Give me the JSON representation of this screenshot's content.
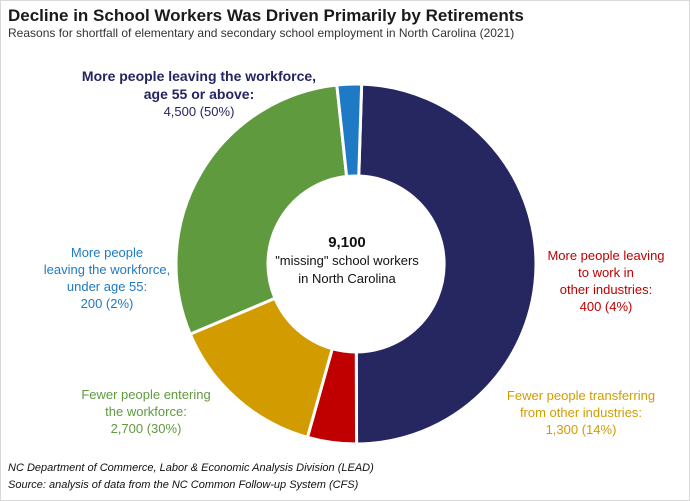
{
  "chart_data": {
    "type": "pie",
    "title": "Decline in School Workers Was Driven Primarily by Retirements",
    "subtitle": "Reasons for shortfall of elementary  and secondary school employment  in North Carolina (2021)",
    "center": {
      "value": "9,100",
      "line1": "\"missing\" school workers",
      "line2": "in North Carolina"
    },
    "slices": [
      {
        "label_lines": [
          "More people leaving the workforce,",
          "age 55 or above:"
        ],
        "value_label": "4,500 (50%)",
        "value": 4500,
        "percent": 50,
        "color": "#262660"
      },
      {
        "label_lines": [
          "More people leaving",
          "to work in",
          "other industries:"
        ],
        "value_label": "400 (4%)",
        "value": 400,
        "percent": 4,
        "color": "#c00000"
      },
      {
        "label_lines": [
          "Fewer people transferring",
          "from other industries:"
        ],
        "value_label": "1,300 (14%)",
        "value": 1300,
        "percent": 14,
        "color": "#d29c00"
      },
      {
        "label_lines": [
          "Fewer people entering",
          "the workforce:"
        ],
        "value_label": "2,700 (30%)",
        "value": 2700,
        "percent": 30,
        "color": "#5f9a3f"
      },
      {
        "label_lines": [
          "More people",
          "leaving the workforce,",
          "under age 55:"
        ],
        "value_label": "200 (2%)",
        "value": 200,
        "percent": 2,
        "color": "#1f7ac5"
      }
    ],
    "start_angle_deg": 271.8,
    "direction": "clockwise",
    "legend": "none"
  },
  "footer": {
    "line1": "NC Department  of Commerce,  Labor & Economic Analysis Division (LEAD)",
    "line2": "Source:  analysis of data from the NC Common Follow-up System (CFS)"
  }
}
